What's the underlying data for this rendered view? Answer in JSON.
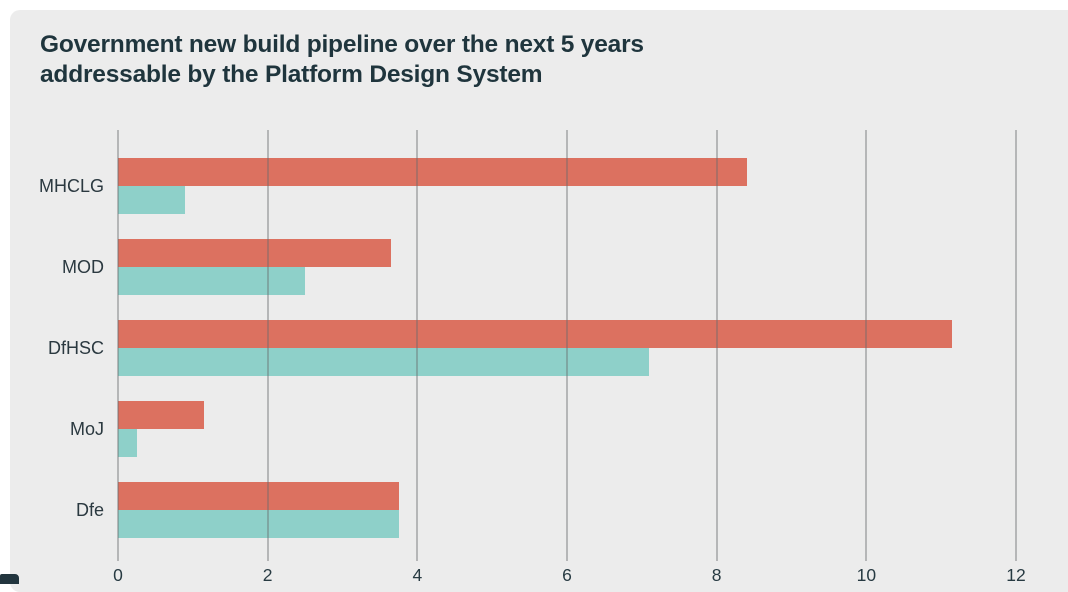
{
  "colors": {
    "page_background": "#ffffff",
    "panel_background": "#ececec",
    "title_text": "#1f353d",
    "axis_text": "#2b3940",
    "gridline": "#a7a7a7",
    "corner_accent": "#22353e"
  },
  "chart_data": {
    "type": "bar",
    "orientation": "horizontal",
    "title": "Government new build pipeline over the next 5 years addressable by the Platform Design System",
    "categories": [
      "MHCLG",
      "MOD",
      "DfHSC",
      "MoJ",
      "Dfe"
    ],
    "series": [
      {
        "name": "orange",
        "color": "#dc7160",
        "values": [
          8.4,
          3.65,
          11.15,
          1.15,
          3.75
        ]
      },
      {
        "name": "teal",
        "color": "#8ed0c9",
        "values": [
          0.9,
          2.5,
          7.1,
          0.25,
          3.75
        ]
      }
    ],
    "xlim": [
      0,
      12
    ],
    "x_ticks": [
      "0",
      "2",
      "4",
      "6",
      "8",
      "10",
      "12"
    ],
    "grid": "vertical-gridlines",
    "legend": "none"
  }
}
